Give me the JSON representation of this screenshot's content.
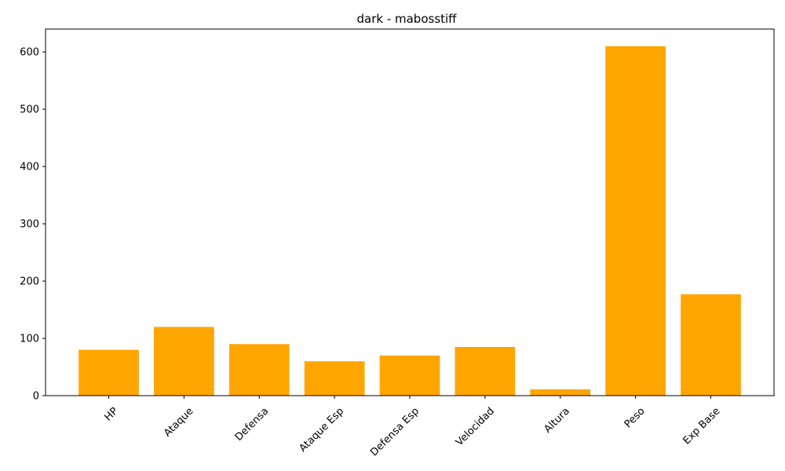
{
  "chart_data": {
    "type": "bar",
    "title": "dark - mabosstiff",
    "categories": [
      "HP",
      "Ataque",
      "Defensa",
      "Ataque Esp",
      "Defensa Esp",
      "Velocidad",
      "Altura",
      "Peso",
      "Exp Base"
    ],
    "values": [
      80,
      120,
      90,
      60,
      70,
      85,
      11,
      610,
      177
    ],
    "xlabel": "",
    "ylabel": "",
    "ylim": [
      0,
      640
    ],
    "yticks": [
      0,
      100,
      200,
      300,
      400,
      500,
      600
    ],
    "bar_color": "#ffa500",
    "grid": false,
    "legend": "none"
  }
}
